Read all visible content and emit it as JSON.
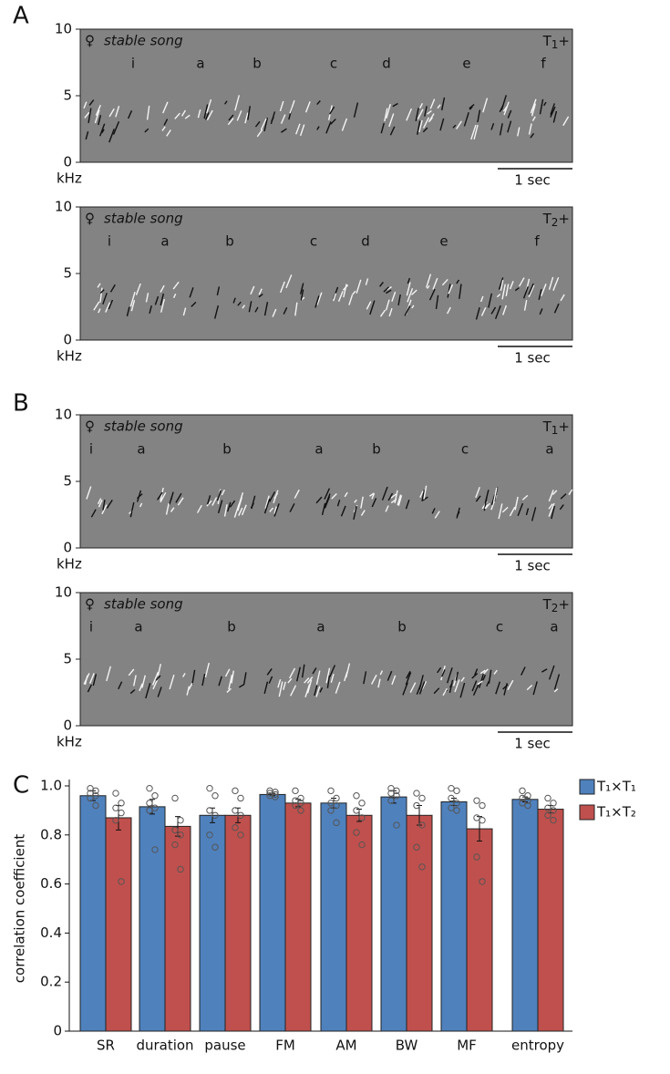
{
  "panel_labels": [
    "A",
    "B",
    "C"
  ],
  "spectrograms": [
    {
      "symbol": "♀",
      "title": "stable song",
      "tag": "T",
      "tag_sub": "1",
      "tag_suffix": "+",
      "ylabel": "kHz",
      "ylim": [
        0,
        10
      ],
      "yticks": [
        0,
        5,
        10
      ],
      "scale_label": "1 sec",
      "syllables": [
        "i",
        "a",
        "b",
        "c",
        "d",
        "e",
        "f"
      ]
    },
    {
      "symbol": "♀",
      "title": "stable song",
      "tag": "T",
      "tag_sub": "2",
      "tag_suffix": "+",
      "ylabel": "kHz",
      "ylim": [
        0,
        10
      ],
      "yticks": [
        0,
        5,
        10
      ],
      "scale_label": "1 sec",
      "syllables": [
        "i",
        "a",
        "b",
        "c",
        "d",
        "e",
        "f"
      ]
    },
    {
      "symbol": "♀",
      "title": "stable song",
      "tag": "T",
      "tag_sub": "1",
      "tag_suffix": "+",
      "ylabel": "kHz",
      "ylim": [
        0,
        10
      ],
      "yticks": [
        0,
        5,
        10
      ],
      "scale_label": "1 sec",
      "syllables": [
        "i",
        "a",
        "b",
        "a",
        "b",
        "c",
        "a"
      ]
    },
    {
      "symbol": "♀",
      "title": "stable song",
      "tag": "T",
      "tag_sub": "2",
      "tag_suffix": "+",
      "ylabel": "kHz",
      "ylim": [
        0,
        10
      ],
      "yticks": [
        0,
        5,
        10
      ],
      "scale_label": "1 sec",
      "syllables": [
        "i",
        "a",
        "b",
        "a",
        "b",
        "c",
        "a"
      ]
    }
  ],
  "chart_data": {
    "type": "bar",
    "ylabel": "correlation coefficient",
    "categories": [
      "SR",
      "duration",
      "pause",
      "FM",
      "AM",
      "BW",
      "MF",
      "entropy"
    ],
    "ylim": [
      0,
      1
    ],
    "yticks": [
      0,
      0.2,
      0.4,
      0.6,
      0.8,
      {
        "value": 1,
        "label": "1.0"
      }
    ],
    "legend": "right",
    "series": [
      {
        "name": "T₁×T₁",
        "color": "#4f81bd",
        "values": [
          0.96,
          0.915,
          0.88,
          0.965,
          0.93,
          0.955,
          0.935,
          0.945
        ],
        "errors": [
          0.02,
          0.03,
          0.03,
          0.005,
          0.02,
          0.025,
          0.015,
          0.01
        ],
        "points": [
          [
            0.99,
            0.98,
            0.97,
            0.96,
            0.95,
            0.92
          ],
          [
            0.99,
            0.96,
            0.93,
            0.91,
            0.9,
            0.74
          ],
          [
            0.99,
            0.96,
            0.9,
            0.88,
            0.8,
            0.75
          ],
          [
            0.98,
            0.975,
            0.97,
            0.965,
            0.96,
            0.955
          ],
          [
            0.98,
            0.95,
            0.93,
            0.92,
            0.9,
            0.85
          ],
          [
            0.99,
            0.98,
            0.97,
            0.96,
            0.94,
            0.84
          ],
          [
            0.99,
            0.98,
            0.95,
            0.93,
            0.91,
            0.9
          ],
          [
            0.98,
            0.96,
            0.95,
            0.94,
            0.93,
            0.92
          ]
        ]
      },
      {
        "name": "T₁×T₂",
        "color": "#c0504d",
        "values": [
          0.87,
          0.835,
          0.88,
          0.93,
          0.88,
          0.88,
          0.825,
          0.905
        ],
        "errors": [
          0.05,
          0.04,
          0.03,
          0.015,
          0.025,
          0.04,
          0.05,
          0.015
        ],
        "points": [
          [
            0.97,
            0.93,
            0.91,
            0.89,
            0.86,
            0.61
          ],
          [
            0.95,
            0.86,
            0.82,
            0.8,
            0.76,
            0.66
          ],
          [
            0.98,
            0.95,
            0.9,
            0.88,
            0.83,
            0.8
          ],
          [
            0.98,
            0.95,
            0.94,
            0.93,
            0.92,
            0.9
          ],
          [
            0.96,
            0.93,
            0.9,
            0.87,
            0.81,
            0.76
          ],
          [
            0.97,
            0.95,
            0.92,
            0.84,
            0.75,
            0.67
          ],
          [
            0.94,
            0.92,
            0.87,
            0.86,
            0.71,
            0.61
          ],
          [
            0.95,
            0.93,
            0.91,
            0.9,
            0.88,
            0.86
          ]
        ]
      }
    ]
  }
}
